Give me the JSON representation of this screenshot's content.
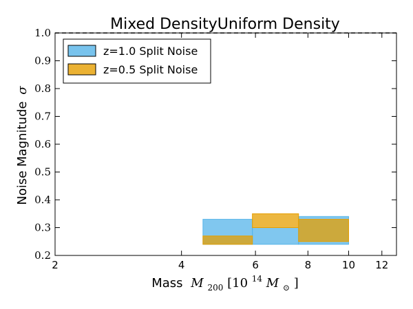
{
  "chart_data": {
    "type": "bar",
    "title": "Mixed DensityUniform Density",
    "xlabel_text": "Mass",
    "xlabel_math": "M",
    "xlabel_sub": "200",
    "xlabel_bracket_open": "[10",
    "xlabel_exp": "14",
    "xlabel_msym": "M",
    "xlabel_sun": "⊙",
    "xlabel_bracket_close": "]",
    "ylabel_text": "Noise Magnitude",
    "ylabel_symbol": "σ",
    "x_scale": "log",
    "xlim": [
      2,
      13
    ],
    "ylim": [
      0.2,
      1.0
    ],
    "x_ticks": [
      2,
      4,
      6,
      8,
      10,
      12
    ],
    "y_ticks": [
      0.2,
      0.3,
      0.4,
      0.5,
      0.6,
      0.7,
      0.8,
      0.9,
      1.0
    ],
    "reference_line": {
      "y": 1.0,
      "style": "dashed"
    },
    "legend_position": "top-left",
    "series": [
      {
        "name": "z=1.0 Split Noise",
        "color": "#56B4E9",
        "edge": "#56B4E9",
        "bins": [
          {
            "x0": 4.5,
            "x1": 5.9,
            "y0": 0.24,
            "y1": 0.33
          },
          {
            "x0": 5.9,
            "x1": 7.6,
            "y0": 0.24,
            "y1": 0.3
          },
          {
            "x0": 7.6,
            "x1": 10.0,
            "y0": 0.24,
            "y1": 0.34
          }
        ]
      },
      {
        "name": "z=0.5 Split Noise",
        "color": "#E69F00",
        "edge": "#E69F00",
        "bins": [
          {
            "x0": 4.5,
            "x1": 5.9,
            "y0": 0.24,
            "y1": 0.27
          },
          {
            "x0": 5.9,
            "x1": 7.6,
            "y0": 0.3,
            "y1": 0.35
          },
          {
            "x0": 7.6,
            "x1": 10.0,
            "y0": 0.25,
            "y1": 0.33
          }
        ]
      }
    ]
  }
}
